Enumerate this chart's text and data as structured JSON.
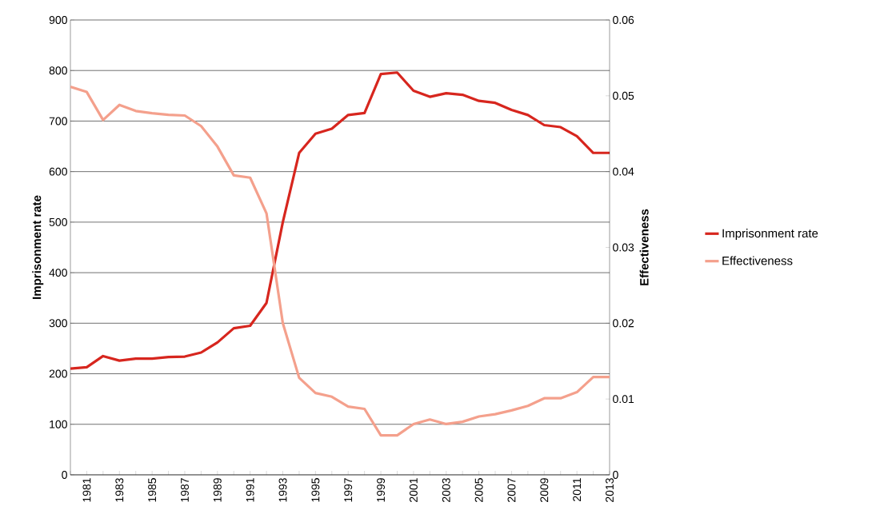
{
  "chart_data": {
    "type": "line",
    "xlabel": null,
    "ylabel": "Imprisonment rate",
    "y2label": "Effectiveness",
    "x": [
      1980,
      1981,
      1982,
      1983,
      1984,
      1985,
      1986,
      1987,
      1988,
      1989,
      1990,
      1991,
      1992,
      1993,
      1994,
      1995,
      1996,
      1997,
      1998,
      1999,
      2000,
      2001,
      2002,
      2003,
      2004,
      2005,
      2006,
      2007,
      2008,
      2009,
      2010,
      2011,
      2012,
      2013
    ],
    "series": [
      {
        "name": "Imprisonment rate",
        "color": "#d7261e",
        "values": [
          210,
          213,
          235,
          226,
          230,
          230,
          233,
          234,
          242,
          262,
          290,
          295,
          340,
          500,
          637,
          675,
          685,
          712,
          716,
          793,
          796,
          760,
          748,
          755,
          752,
          740,
          736,
          722,
          712,
          692,
          688,
          670,
          637,
          637
        ]
      },
      {
        "name": "Effectiveness",
        "color": "#f4a08c",
        "axis": "y2",
        "values": [
          0.0512,
          0.0505,
          0.0468,
          0.0488,
          0.048,
          0.0477,
          0.0475,
          0.0474,
          0.046,
          0.0433,
          0.0395,
          0.0392,
          0.0345,
          0.02,
          0.0128,
          0.0108,
          0.0103,
          0.009,
          0.0087,
          0.0052,
          0.0052,
          0.0067,
          0.0073,
          0.0067,
          0.007,
          0.0077,
          0.008,
          0.0085,
          0.0091,
          0.0101,
          0.0101,
          0.0109,
          0.0129,
          0.0129
        ]
      }
    ],
    "xlim": [
      1980,
      2013
    ],
    "xticks": [
      {
        "value": 1980,
        "label": null
      },
      1981,
      {
        "value": 1982,
        "label": null
      },
      1983,
      {
        "value": 1984,
        "label": null
      },
      1985,
      {
        "value": 1986,
        "label": null
      },
      1987,
      {
        "value": 1988,
        "label": null
      },
      1989,
      {
        "value": 1990,
        "label": null
      },
      1991,
      {
        "value": 1992,
        "label": null
      },
      1993,
      {
        "value": 1994,
        "label": null
      },
      1995,
      {
        "value": 1996,
        "label": null
      },
      1997,
      {
        "value": 1998,
        "label": null
      },
      1999,
      {
        "value": 2000,
        "label": null
      },
      2001,
      {
        "value": 2002,
        "label": null
      },
      2003,
      {
        "value": 2004,
        "label": null
      },
      2005,
      {
        "value": 2006,
        "label": null
      },
      2007,
      {
        "value": 2008,
        "label": null
      },
      2009,
      {
        "value": 2010,
        "label": null
      },
      2011,
      {
        "value": 2012,
        "label": null
      },
      2013
    ],
    "ylim": [
      0,
      900
    ],
    "yticks": [
      0,
      100,
      200,
      300,
      400,
      500,
      600,
      700,
      800,
      900
    ],
    "y2lim": [
      0,
      0.06
    ],
    "y2ticks": [
      0,
      0.01,
      0.02,
      0.03,
      0.04,
      0.05,
      0.06
    ],
    "grid": "y",
    "legend": "right",
    "marker": "none",
    "line_style": "solid"
  }
}
